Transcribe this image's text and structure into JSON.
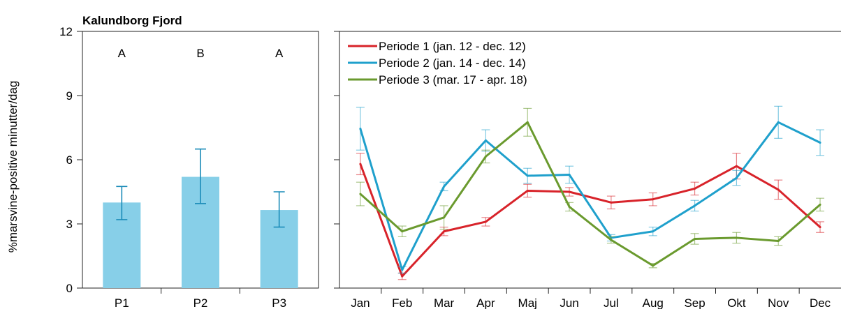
{
  "chart_data": [
    {
      "type": "bar",
      "title": "Kalundborg Fjord",
      "ylabel": "%marsvine-positive minutter/dag",
      "xlabel": "",
      "ylim": [
        0,
        12
      ],
      "yticks": [
        "0",
        "3",
        "6",
        "9",
        "12"
      ],
      "categories": [
        "P1",
        "P2",
        "P3"
      ],
      "values": [
        4.0,
        5.2,
        3.65
      ],
      "error_low": [
        3.2,
        3.95,
        2.85
      ],
      "error_high": [
        4.75,
        6.5,
        4.5
      ],
      "group_letters": [
        "A",
        "B",
        "A"
      ],
      "color": "#87cfe8",
      "error_color": "#1a8bb8"
    },
    {
      "type": "line",
      "xlabel": "",
      "ylabel": "",
      "ylim": [
        0,
        12
      ],
      "legend_position": "top-left",
      "categories": [
        "Jan",
        "Feb",
        "Mar",
        "Apr",
        "Maj",
        "Jun",
        "Jul",
        "Aug",
        "Sep",
        "Okt",
        "Nov",
        "Dec"
      ],
      "series": [
        {
          "name": "Periode 1 (jan. 12 - dec. 12)",
          "color": "#d8232a",
          "values": [
            5.8,
            0.55,
            2.65,
            3.1,
            4.55,
            4.5,
            4.0,
            4.15,
            4.65,
            5.7,
            4.6,
            2.85
          ],
          "error": [
            0.5,
            0.15,
            0.2,
            0.2,
            0.3,
            0.2,
            0.3,
            0.3,
            0.3,
            0.6,
            0.45,
            0.25
          ]
        },
        {
          "name": "Periode 2 (jan. 14 - dec. 14)",
          "color": "#1fa0cc",
          "values": [
            7.45,
            0.85,
            4.75,
            6.9,
            5.25,
            5.3,
            2.35,
            2.65,
            3.85,
            5.15,
            7.75,
            6.8
          ],
          "error": [
            1.0,
            0.15,
            0.2,
            0.5,
            0.35,
            0.4,
            0.15,
            0.2,
            0.25,
            0.35,
            0.75,
            0.6
          ]
        },
        {
          "name": "Periode 3 (mar. 17 - apr. 18)",
          "color": "#6a9a2e",
          "values": [
            4.4,
            2.65,
            3.3,
            6.15,
            7.75,
            3.8,
            2.25,
            1.05,
            2.3,
            2.35,
            2.2,
            3.9
          ],
          "error": [
            0.55,
            0.25,
            0.55,
            0.3,
            0.65,
            0.2,
            0.15,
            0.1,
            0.25,
            0.25,
            0.2,
            0.3
          ]
        }
      ]
    }
  ]
}
